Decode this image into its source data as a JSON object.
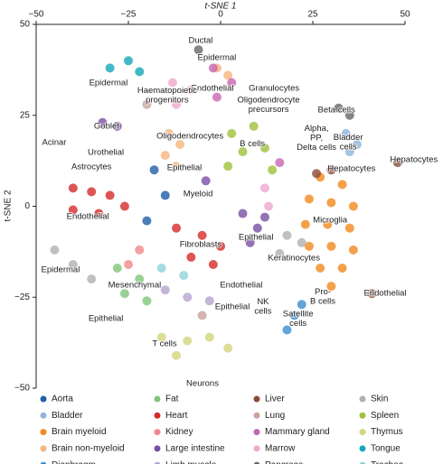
{
  "chart_data": {
    "type": "scatter",
    "xlabel": "t-SNE 1",
    "ylabel": "t-SNE 2",
    "xlim": [
      -50,
      50
    ],
    "ylim": [
      -50,
      50
    ],
    "xticks": [
      {
        "value": -50,
        "label": "−50"
      },
      {
        "value": -25,
        "label": "−25"
      },
      0,
      25,
      50
    ],
    "yticks": [
      50,
      25,
      0,
      {
        "value": -25,
        "label": "−25"
      },
      {
        "value": -50,
        "label": "−50"
      }
    ],
    "series": [
      {
        "name": "Aorta",
        "color": "#1f5fa8",
        "x": [
          -18,
          -15,
          -20
        ],
        "y": [
          10,
          3,
          -4
        ]
      },
      {
        "name": "Bladder",
        "color": "#8fb4dc",
        "x": [
          34,
          37,
          35
        ],
        "y": [
          20,
          17,
          15
        ]
      },
      {
        "name": "Brain myeloid",
        "color": "#f28a1e",
        "x": [
          27,
          33,
          24,
          30,
          36,
          23,
          29,
          35,
          24,
          30,
          36,
          27,
          33,
          30
        ],
        "y": [
          8,
          6,
          2,
          1,
          0,
          -5,
          -5,
          -6,
          -11,
          -11,
          -12,
          -17,
          -17,
          -22
        ]
      },
      {
        "name": "Brain non-myeloid",
        "color": "#f5b57f",
        "x": [
          -14,
          -11,
          -15,
          -12,
          -1,
          2
        ],
        "y": [
          20,
          17,
          14,
          11,
          38,
          36
        ]
      },
      {
        "name": "Diaphragm",
        "color": "#3a8fd0",
        "x": [
          18,
          20,
          22
        ],
        "y": [
          -34,
          -30,
          -27
        ]
      },
      {
        "name": "Fat",
        "color": "#80c67a",
        "x": [
          -28,
          -22,
          -26,
          -20
        ],
        "y": [
          -17,
          -20,
          -24,
          -26
        ]
      },
      {
        "name": "Heart",
        "color": "#d42a2a",
        "x": [
          -40,
          -35,
          -30,
          -40,
          -33,
          -26,
          -12,
          -5,
          0,
          -8,
          -2
        ],
        "y": [
          5,
          4,
          3,
          -1,
          -2,
          0,
          -6,
          -8,
          -11,
          -14,
          -16
        ]
      },
      {
        "name": "Kidney",
        "color": "#f08a8a",
        "x": [
          -25,
          -22
        ],
        "y": [
          -16,
          -12
        ]
      },
      {
        "name": "Large intestine",
        "color": "#7a4ea3",
        "x": [
          -32,
          -28,
          6,
          10,
          8,
          12,
          -4
        ],
        "y": [
          23,
          22,
          -2,
          -6,
          -10,
          -3,
          7
        ]
      },
      {
        "name": "Limb muscle",
        "color": "#b5a3d0",
        "x": [
          -15,
          -9,
          -3
        ],
        "y": [
          -23,
          -25,
          -26
        ]
      },
      {
        "name": "Liver",
        "color": "#8b4a3a",
        "x": [
          26,
          30,
          41,
          48
        ],
        "y": [
          9,
          10,
          -24,
          12
        ]
      },
      {
        "name": "Lung",
        "color": "#c9a29c",
        "x": [
          -20,
          -5
        ],
        "y": [
          28,
          -30
        ]
      },
      {
        "name": "Mammary gland",
        "color": "#c965b0",
        "x": [
          -2,
          3,
          -1,
          16
        ],
        "y": [
          38,
          34,
          30,
          12
        ]
      },
      {
        "name": "Marrow",
        "color": "#f0a8d0",
        "x": [
          -13,
          -8,
          -12,
          12,
          13
        ],
        "y": [
          34,
          32,
          28,
          5,
          0
        ]
      },
      {
        "name": "Pancreas",
        "color": "#666666",
        "x": [
          -6,
          32,
          35
        ],
        "y": [
          43,
          27,
          25
        ]
      },
      {
        "name": "Skin",
        "color": "#b0b0b0",
        "x": [
          18,
          22,
          16,
          -45,
          -40,
          -35
        ],
        "y": [
          -8,
          -10,
          -13,
          -12,
          -16,
          -20
        ]
      },
      {
        "name": "Spleen",
        "color": "#9fc23a",
        "x": [
          3,
          9,
          6,
          12,
          2,
          14
        ],
        "y": [
          20,
          22,
          15,
          16,
          11,
          10
        ]
      },
      {
        "name": "Thymus",
        "color": "#d4d480",
        "x": [
          -16,
          -9,
          -3,
          2,
          -12
        ],
        "y": [
          -36,
          -37,
          -36,
          -39,
          -41
        ]
      },
      {
        "name": "Tongue",
        "color": "#17a6b8",
        "x": [
          -30,
          -25,
          -22
        ],
        "y": [
          38,
          40,
          37
        ]
      },
      {
        "name": "Trachea",
        "color": "#8fd3dc",
        "x": [
          -16,
          -10
        ],
        "y": [
          -17,
          -19
        ]
      }
    ],
    "annotations": [
      {
        "lines": [
          "Ductal"
        ],
        "x": -5.4,
        "y": 45.5
      },
      {
        "lines": [
          "Epidermal"
        ],
        "x": -1,
        "y": 40.8
      },
      {
        "lines": [
          "Epidermal"
        ],
        "x": -30.4,
        "y": 33.9
      },
      {
        "lines": [
          "Endothelial"
        ],
        "x": -2.2,
        "y": 32.4
      },
      {
        "lines": [
          "Haematopoietic",
          "progenitors"
        ],
        "x": -14.5,
        "y": 30.5
      },
      {
        "lines": [
          "Granulocytes"
        ],
        "x": 14.5,
        "y": 32.4
      },
      {
        "lines": [
          "Oligodendrocyte",
          "precursors"
        ],
        "x": 13,
        "y": 27.9
      },
      {
        "lines": [
          "Beta cells"
        ],
        "x": 31.4,
        "y": 26.4
      },
      {
        "lines": [
          "Goblet"
        ],
        "x": -30.9,
        "y": 22
      },
      {
        "lines": [
          "Oligodendrocytes"
        ],
        "x": -8.3,
        "y": 19.2
      },
      {
        "lines": [
          "Acinar"
        ],
        "x": -45.1,
        "y": 17.5
      },
      {
        "lines": [
          "Alpha,",
          "PP,",
          "Delta cells"
        ],
        "x": 26,
        "y": 18.7
      },
      {
        "lines": [
          "Bladder",
          "cells"
        ],
        "x": 34.6,
        "y": 17.5
      },
      {
        "lines": [
          "Urothelial"
        ],
        "x": -31.1,
        "y": 14.8
      },
      {
        "lines": [
          "B cells"
        ],
        "x": 8.6,
        "y": 17.1
      },
      {
        "lines": [
          "Astrocytes"
        ],
        "x": -35,
        "y": 10.8
      },
      {
        "lines": [
          "Epithelial"
        ],
        "x": -9.8,
        "y": 10.5
      },
      {
        "lines": [
          "Hepatocytes"
        ],
        "x": 35.5,
        "y": 10.3
      },
      {
        "lines": [
          "Hepatocytes"
        ],
        "x": 52.4,
        "y": 12.8
      },
      {
        "lines": [
          "Myeloid"
        ],
        "x": -6.1,
        "y": 3.4
      },
      {
        "lines": [
          "Endothelial"
        ],
        "x": -36,
        "y": -2.9
      },
      {
        "lines": [
          "Microglia"
        ],
        "x": 29.7,
        "y": -3.8
      },
      {
        "lines": [
          "Epithelial"
        ],
        "x": 9.6,
        "y": -8.6
      },
      {
        "lines": [
          "Fibroblasts"
        ],
        "x": -5.4,
        "y": -10.5
      },
      {
        "lines": [
          "Keratinocytes"
        ],
        "x": 19.9,
        "y": -14.3
      },
      {
        "lines": [
          "Epidermal"
        ],
        "x": -43.4,
        "y": -17.5
      },
      {
        "lines": [
          "Mesenchymal"
        ],
        "x": -23.3,
        "y": -21.7
      },
      {
        "lines": [
          "Endothelial"
        ],
        "x": 5.6,
        "y": -21.7
      },
      {
        "lines": [
          "Pro-",
          "B cells"
        ],
        "x": 27.7,
        "y": -24.9
      },
      {
        "lines": [
          "Endothelial"
        ],
        "x": 44.6,
        "y": -24
      },
      {
        "lines": [
          "NK",
          "cells"
        ],
        "x": 11.5,
        "y": -27.6
      },
      {
        "lines": [
          "Epithelial"
        ],
        "x": 3.2,
        "y": -27.7
      },
      {
        "lines": [
          "Satellite",
          "cells"
        ],
        "x": 21,
        "y": -30.9
      },
      {
        "lines": [
          "Epithelial"
        ],
        "x": -31.1,
        "y": -30.9
      },
      {
        "lines": [
          "T cells"
        ],
        "x": -15.2,
        "y": -37.8
      },
      {
        "lines": [
          "Neurons"
        ],
        "x": -4.9,
        "y": -48.8
      }
    ]
  }
}
